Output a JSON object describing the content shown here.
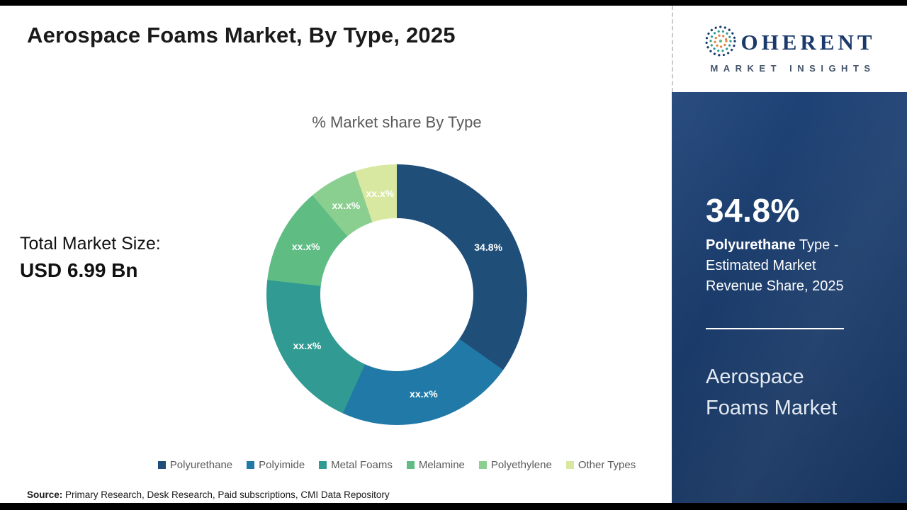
{
  "page": {
    "title": "Aerospace Foams Market, By Type, 2025"
  },
  "left": {
    "total_label": "Total Market Size:",
    "total_value": "USD 6.99 Bn"
  },
  "chart_data": {
    "type": "pie",
    "variant": "donut",
    "title": "% Market share By Type",
    "categories": [
      "Polyurethane",
      "Polyimide",
      "Metal Foams",
      "Melamine",
      "Polyethylene",
      "Other Types"
    ],
    "values": [
      34.8,
      22.0,
      20.0,
      12.0,
      6.0,
      5.2
    ],
    "slice_labels": [
      "34.8%",
      "xx.x%",
      "xx.x%",
      "xx.x%",
      "xx.x%",
      "xx.x%"
    ],
    "colors": [
      "#1F4E79",
      "#2079A7",
      "#319A93",
      "#5FBD84",
      "#8BCF90",
      "#D8E8A0"
    ],
    "legend_position": "bottom",
    "start_angle_deg": 0,
    "direction": "clockwise"
  },
  "right_panel": {
    "stat_value": "34.8%",
    "stat_bold": "Polyurethane",
    "stat_rest": " Type - Estimated Market Revenue Share, 2025",
    "panel_title": "Aerospace Foams Market",
    "bg_color": "#1C3E6E"
  },
  "logo": {
    "word": "OHERENT",
    "subtitle": "MARKET INSIGHTS",
    "color": "#1B3A6B"
  },
  "source": {
    "label": "Source:",
    "text": " Primary Research, Desk Research, Paid subscriptions, CMI Data Repository"
  }
}
